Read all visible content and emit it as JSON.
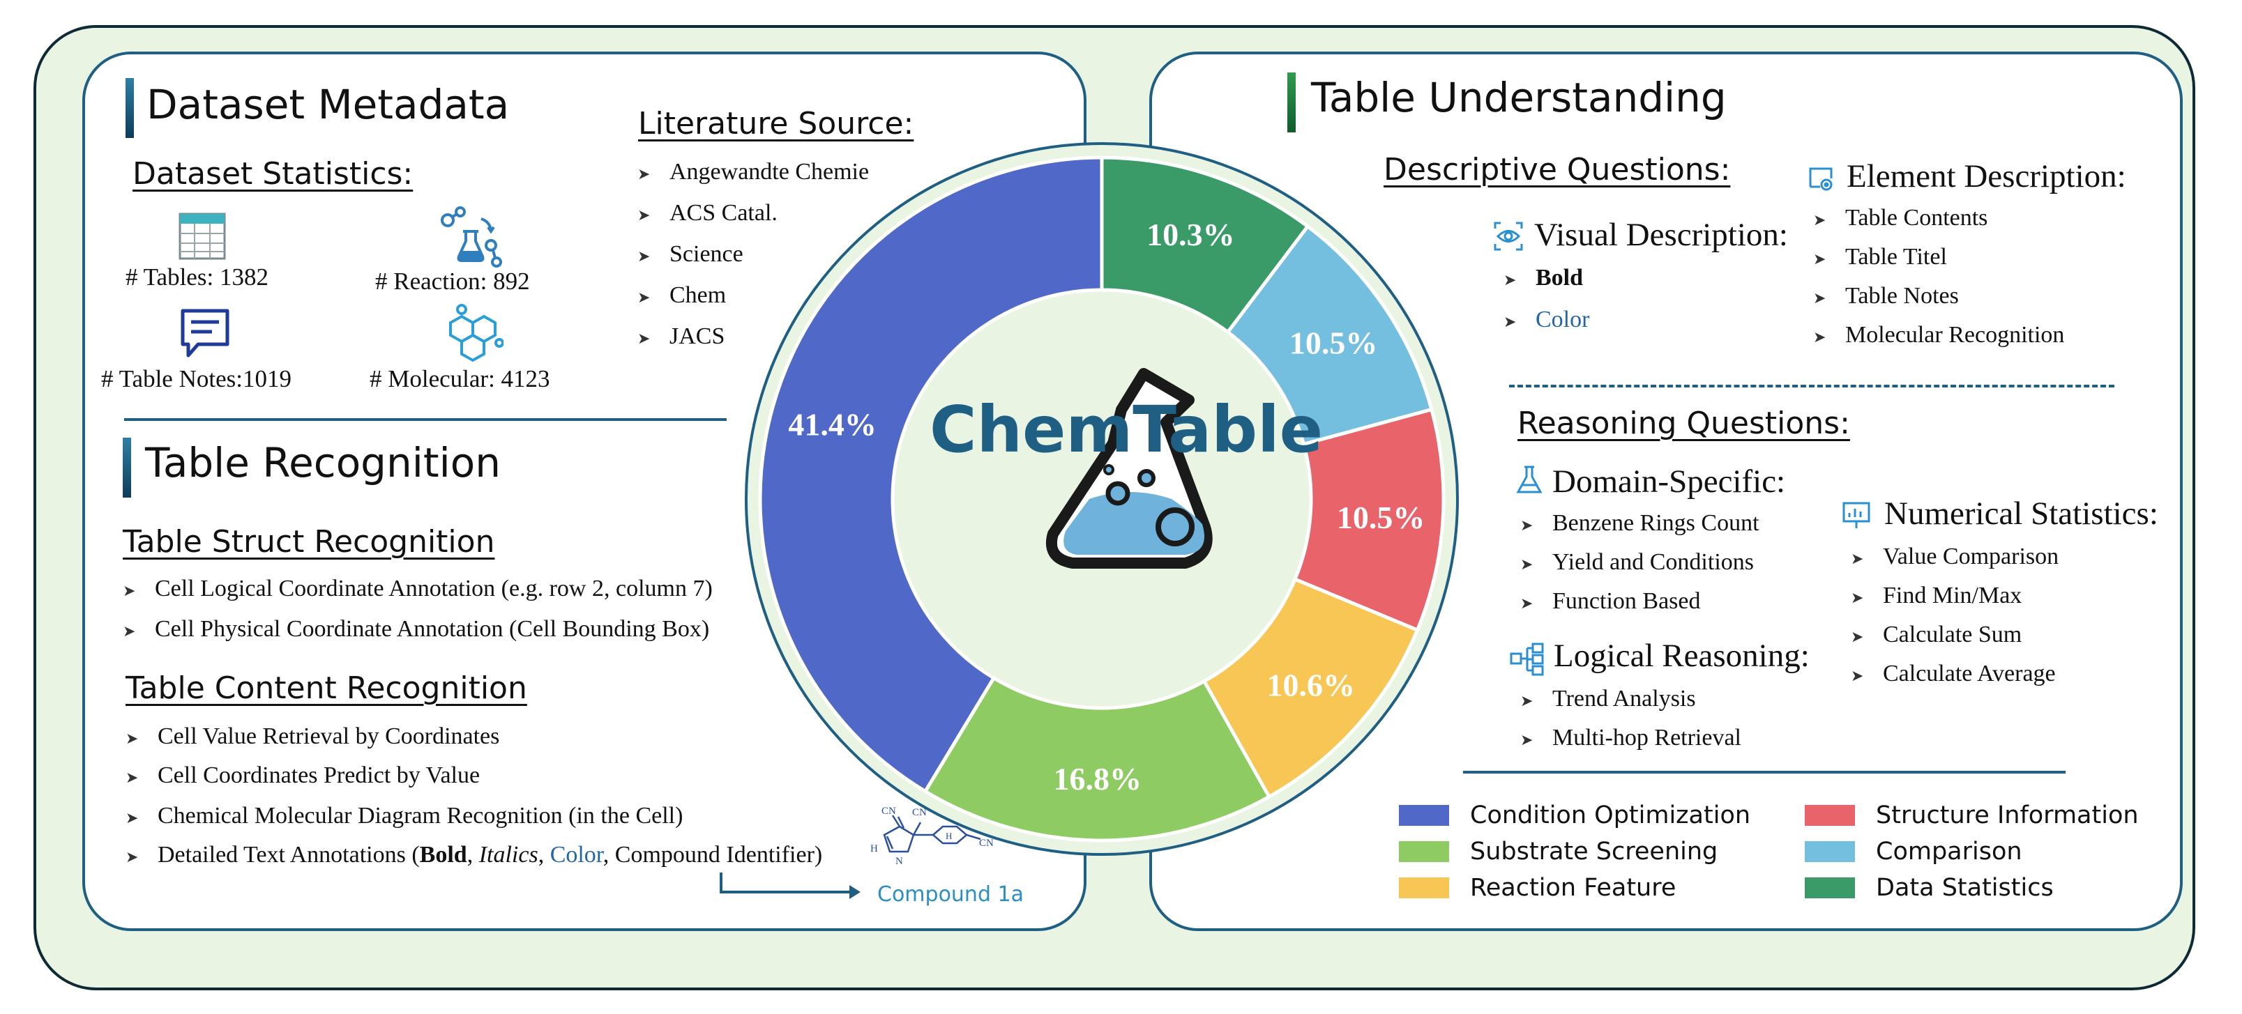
{
  "left": {
    "dataset_metadata_title": "Dataset Metadata",
    "dataset_statistics_title": "Dataset Statistics:",
    "stats": {
      "tables": "# Tables: 1382",
      "reaction": "# Reaction: 892",
      "table_notes": "# Table Notes:1019",
      "molecular": "# Molecular: 4123"
    },
    "literature_title": "Literature Source:",
    "literature_items": [
      "Angewandte Chemie",
      "ACS Catal.",
      "Science",
      "Chem",
      "JACS"
    ],
    "table_recognition_title": "Table Recognition",
    "struct_title": "Table Struct Recognition",
    "struct_items": [
      "Cell Logical Coordinate Annotation (e.g. row 2, column 7)",
      "Cell Physical Coordinate Annotation  (Cell Bounding Box)"
    ],
    "content_title": "Table Content Recognition",
    "content_items": [
      "Cell Value Retrieval by Coordinates",
      "Cell Coordinates Predict by Value",
      "Chemical Molecular Diagram Recognition (in the Cell)"
    ],
    "detailed": {
      "prefix": "Detailed Text Annotations (",
      "bold": "Bold",
      "sep1": ", ",
      "italics": "Italics",
      "sep2": ", ",
      "color": "Color",
      "suffix": ", Compound Identifier)"
    },
    "compound_label": "Compound 1a",
    "molecule_labels": {
      "cn1": "CN",
      "cn2": "CN",
      "cn3": "CN",
      "h1": "H",
      "h2": "H",
      "n": "N"
    }
  },
  "center": {
    "logo_text": "ChemTable"
  },
  "chart_data": {
    "type": "pie",
    "donut": true,
    "categories": [
      "Data Statistics",
      "Comparison",
      "Structure Information",
      "Reaction Feature",
      "Substrate Screening",
      "Condition Optimization"
    ],
    "values": [
      10.3,
      10.5,
      10.5,
      10.6,
      16.8,
      41.4
    ],
    "labels": [
      "10.3%",
      "10.5%",
      "10.5%",
      "10.6%",
      "16.8%",
      "41.4%"
    ],
    "colors": [
      "#3a9b68",
      "#74bedf",
      "#e9646a",
      "#f7c654",
      "#8fcb63",
      "#5068c8"
    ]
  },
  "right": {
    "table_understanding_title": "Table Understanding",
    "descriptive_title": "Descriptive Questions:",
    "visual_title": "Visual Description:",
    "visual_bold": "Bold",
    "visual_color": "Color",
    "element_title": "Element Description:",
    "element_items": [
      "Table Contents",
      "Table Titel",
      "Table Notes",
      "Molecular Recognition"
    ],
    "reasoning_title": "Reasoning Questions:",
    "domain_title": "Domain-Specific:",
    "domain_items": [
      "Benzene Rings Count",
      "Yield and Conditions",
      "Function Based"
    ],
    "numerical_title": "Numerical Statistics:",
    "numerical_items": [
      "Value Comparison",
      "Find Min/Max",
      "Calculate Sum",
      "Calculate Average"
    ],
    "logical_title": "Logical Reasoning:",
    "logical_items": [
      "Trend Analysis",
      "Multi-hop Retrieval"
    ]
  },
  "legend": [
    {
      "label": "Condition Optimization",
      "color": "#5068c8"
    },
    {
      "label": "Substrate Screening",
      "color": "#8fcb63"
    },
    {
      "label": "Reaction Feature",
      "color": "#f7c654"
    },
    {
      "label": "Structure Information",
      "color": "#e9646a"
    },
    {
      "label": "Comparison",
      "color": "#74bedf"
    },
    {
      "label": "Data Statistics",
      "color": "#3a9b68"
    }
  ],
  "icons": {
    "tables": "table-icon",
    "reaction": "reaction-flask-icon",
    "notes": "chat-note-icon",
    "molecular": "molecule-icon",
    "visual": "eye-icon",
    "element": "element-icon",
    "domain": "flask-icon",
    "numerical": "presentation-chart-icon",
    "logical": "hierarchy-icon",
    "logo": "flask-logo-icon"
  },
  "colors": {
    "accent_blue": "#1f5f84",
    "text_blue": "#2167a8",
    "background_green": "#e9f5e2"
  }
}
